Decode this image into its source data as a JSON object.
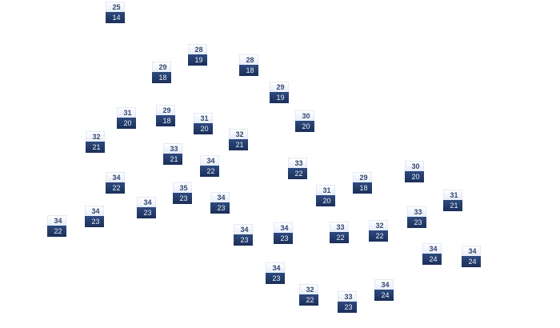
{
  "markers": [
    {
      "high": "25",
      "low": "14"
    },
    {
      "high": "28",
      "low": "19"
    },
    {
      "high": "29",
      "low": "18"
    },
    {
      "high": "28",
      "low": "18"
    },
    {
      "high": "29",
      "low": "19"
    },
    {
      "high": "30",
      "low": "20"
    },
    {
      "high": "31",
      "low": "20"
    },
    {
      "high": "29",
      "low": "18"
    },
    {
      "high": "31",
      "low": "20"
    },
    {
      "high": "32",
      "low": "21"
    },
    {
      "high": "32",
      "low": "21"
    },
    {
      "high": "33",
      "low": "21"
    },
    {
      "high": "34",
      "low": "22"
    },
    {
      "high": "33",
      "low": "22"
    },
    {
      "high": "34",
      "low": "22"
    },
    {
      "high": "35",
      "low": "23"
    },
    {
      "high": "34",
      "low": "23"
    },
    {
      "high": "34",
      "low": "23"
    },
    {
      "high": "34",
      "low": "23"
    },
    {
      "high": "34",
      "low": "22"
    },
    {
      "high": "34",
      "low": "23"
    },
    {
      "high": "34",
      "low": "23"
    },
    {
      "high": "34",
      "low": "23"
    },
    {
      "high": "32",
      "low": "22"
    },
    {
      "high": "33",
      "low": "23"
    },
    {
      "high": "34",
      "low": "24"
    },
    {
      "high": "31",
      "low": "20"
    },
    {
      "high": "29",
      "low": "18"
    },
    {
      "high": "30",
      "low": "20"
    },
    {
      "high": "31",
      "low": "21"
    },
    {
      "high": "33",
      "low": "23"
    },
    {
      "high": "33",
      "low": "22"
    },
    {
      "high": "32",
      "low": "22"
    },
    {
      "high": "34",
      "low": "24"
    },
    {
      "high": "34",
      "low": "24"
    }
  ],
  "colors": {
    "high_bg": "#e6edf9",
    "low_bg": "#1f3563"
  }
}
